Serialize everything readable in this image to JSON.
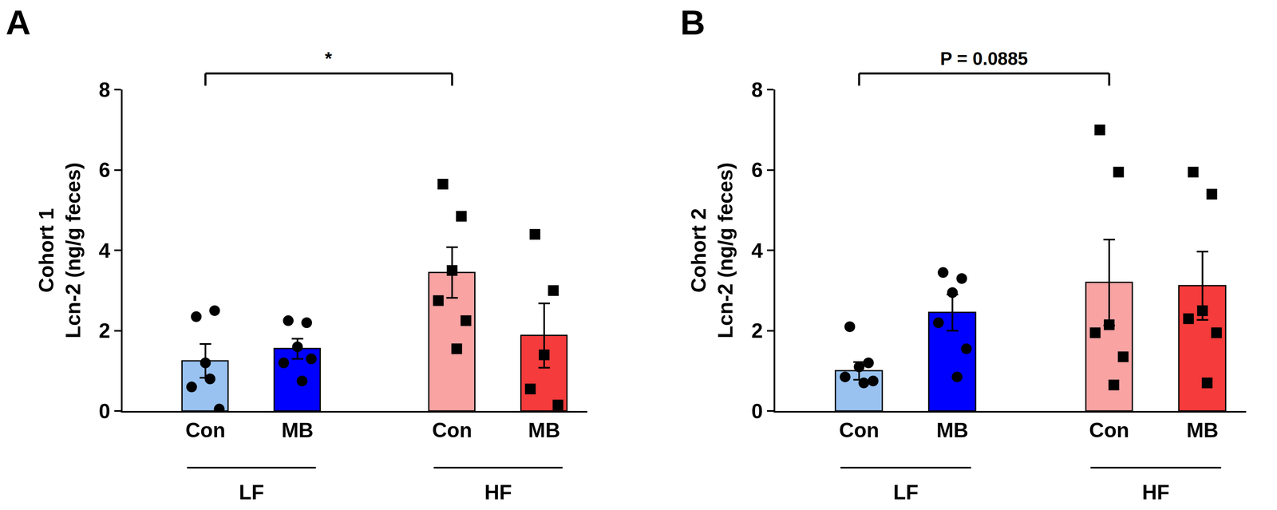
{
  "chart_data": [
    {
      "type": "bar",
      "panel": "A",
      "ylabel": [
        "Cohort 1",
        "Lcn-2 (ng/g feces)"
      ],
      "categories": [
        "Con",
        "MB",
        "Con",
        "MB"
      ],
      "groups": [
        {
          "label": "LF",
          "size": 2
        },
        {
          "label": "HF",
          "size": 2
        }
      ],
      "values": [
        1.25,
        1.55,
        3.45,
        1.88
      ],
      "error_bars": [
        0.42,
        0.25,
        0.63,
        0.8
      ],
      "colors": [
        "#99c2f0",
        "#0000ff",
        "#f9a3a3",
        "#f53b3b"
      ],
      "points": [
        [
          2.35,
          2.5,
          1.2,
          0.6,
          0.05,
          0.8
        ],
        [
          2.25,
          2.2,
          1.6,
          1.2,
          1.3,
          0.75
        ],
        [
          5.65,
          4.85,
          3.5,
          2.75,
          2.25,
          1.55
        ],
        [
          4.4,
          3.0,
          1.4,
          0.55,
          0.15
        ]
      ],
      "point_markers": [
        "circle",
        "circle",
        "square",
        "square"
      ],
      "comparisons": [
        {
          "from": 0,
          "to": 2,
          "label": "*"
        }
      ],
      "ylim": [
        0,
        8
      ],
      "yticks": [
        0,
        2,
        4,
        6,
        8
      ],
      "grid": false
    },
    {
      "type": "bar",
      "panel": "B",
      "ylabel": [
        "Cohort 2",
        "Lcn-2 (ng/g feces)"
      ],
      "categories": [
        "Con",
        "MB",
        "Con",
        "MB"
      ],
      "groups": [
        {
          "label": "LF",
          "size": 2
        },
        {
          "label": "HF",
          "size": 2
        }
      ],
      "values": [
        1.0,
        2.45,
        3.2,
        3.12
      ],
      "error_bars": [
        0.22,
        0.45,
        1.07,
        0.85
      ],
      "colors": [
        "#99c2f0",
        "#0000ff",
        "#f9a3a3",
        "#f53b3b"
      ],
      "points": [
        [
          2.1,
          1.2,
          1.1,
          0.85,
          0.75,
          0.7
        ],
        [
          3.45,
          3.3,
          2.95,
          2.2,
          1.55,
          0.85
        ],
        [
          7.0,
          5.95,
          2.15,
          1.95,
          1.35,
          0.65
        ],
        [
          5.95,
          5.4,
          2.5,
          2.3,
          1.95,
          0.7
        ]
      ],
      "point_markers": [
        "circle",
        "circle",
        "square",
        "square"
      ],
      "comparisons": [
        {
          "from": 0,
          "to": 2,
          "label": "P = 0.0885"
        }
      ],
      "ylim": [
        0,
        8
      ],
      "yticks": [
        0,
        2,
        4,
        6,
        8
      ],
      "grid": false
    }
  ]
}
